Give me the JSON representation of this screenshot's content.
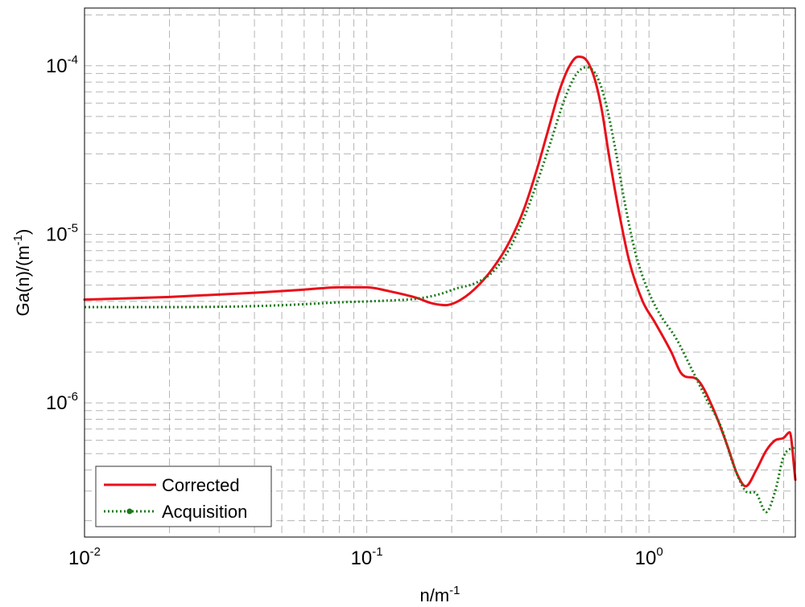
{
  "chart_data": {
    "type": "line",
    "title": "",
    "xlabel": "n/m",
    "xlabel_sup": "-1",
    "ylabel": "Ga(n)/(m",
    "ylabel_sup": "-1",
    "ylabel_tail": ")",
    "xscale": "log",
    "yscale": "log",
    "xlim": [
      0.01,
      3.3
    ],
    "ylim": [
      1.6e-07,
      0.00022
    ],
    "grid": true,
    "legend_position": "bottom-left",
    "x_ticks": [
      {
        "value": 0.01,
        "base": "10",
        "exp": "-2"
      },
      {
        "value": 0.1,
        "base": "10",
        "exp": "-1"
      },
      {
        "value": 1,
        "base": "10",
        "exp": "0"
      }
    ],
    "y_ticks": [
      {
        "value": 1e-06,
        "base": "10",
        "exp": "-6"
      },
      {
        "value": 1e-05,
        "base": "10",
        "exp": "-5"
      },
      {
        "value": 0.0001,
        "base": "10",
        "exp": "-4"
      }
    ],
    "series": [
      {
        "name": "Corrected",
        "color": "#e8101a",
        "style": "solid",
        "x": [
          0.01,
          0.02,
          0.04,
          0.06,
          0.08,
          0.1,
          0.12,
          0.15,
          0.17,
          0.19,
          0.21,
          0.24,
          0.28,
          0.32,
          0.36,
          0.4,
          0.44,
          0.48,
          0.52,
          0.56,
          0.6,
          0.64,
          0.68,
          0.72,
          0.78,
          0.85,
          0.95,
          1.05,
          1.2,
          1.3,
          1.5,
          1.7,
          1.9,
          2.05,
          2.2,
          2.4,
          2.6,
          2.8,
          3.0,
          3.15,
          3.3
        ],
        "y": [
          4.1e-06,
          4.25e-06,
          4.5e-06,
          4.7e-06,
          4.85e-06,
          4.85e-06,
          4.6e-06,
          4.2e-06,
          3.9e-06,
          3.8e-06,
          4e-06,
          4.7e-06,
          6.3e-06,
          9e-06,
          1.4e-05,
          2.4e-05,
          4.2e-05,
          7e-05,
          9.8e-05,
          0.000113,
          0.000108,
          8.5e-05,
          5.5e-05,
          3e-05,
          1.4e-05,
          7e-06,
          4e-06,
          3e-06,
          2e-06,
          1.5e-06,
          1.35e-06,
          9e-07,
          5.5e-07,
          3.8e-07,
          3.2e-07,
          4e-07,
          5.2e-07,
          6e-07,
          6.2e-07,
          6.7e-07,
          3.5e-07
        ]
      },
      {
        "name": "Acquisition",
        "color": "#1a7a1a",
        "style": "dotted",
        "x": [
          0.01,
          0.02,
          0.04,
          0.06,
          0.08,
          0.1,
          0.12,
          0.15,
          0.18,
          0.21,
          0.24,
          0.28,
          0.32,
          0.36,
          0.4,
          0.45,
          0.5,
          0.55,
          0.6,
          0.65,
          0.7,
          0.76,
          0.82,
          0.9,
          1.0,
          1.1,
          1.25,
          1.4,
          1.6,
          1.8,
          2.0,
          2.2,
          2.4,
          2.6,
          2.8,
          3.0,
          3.3
        ],
        "y": [
          3.7e-06,
          3.7e-06,
          3.75e-06,
          3.85e-06,
          3.95e-06,
          4e-06,
          4.05e-06,
          4.15e-06,
          4.4e-06,
          4.8e-06,
          5.1e-06,
          6e-06,
          8.2e-06,
          1.25e-05,
          2e-05,
          3.6e-05,
          6.2e-05,
          8.8e-05,
          9.8e-05,
          8.8e-05,
          6.2e-05,
          3.2e-05,
          1.55e-05,
          7.5e-06,
          4.5e-06,
          3.3e-06,
          2.4e-06,
          1.65e-06,
          1.05e-06,
          7.2e-07,
          4.2e-07,
          3e-07,
          2.9e-07,
          2.25e-07,
          3e-07,
          4.8e-07,
          5.5e-07
        ]
      }
    ]
  }
}
